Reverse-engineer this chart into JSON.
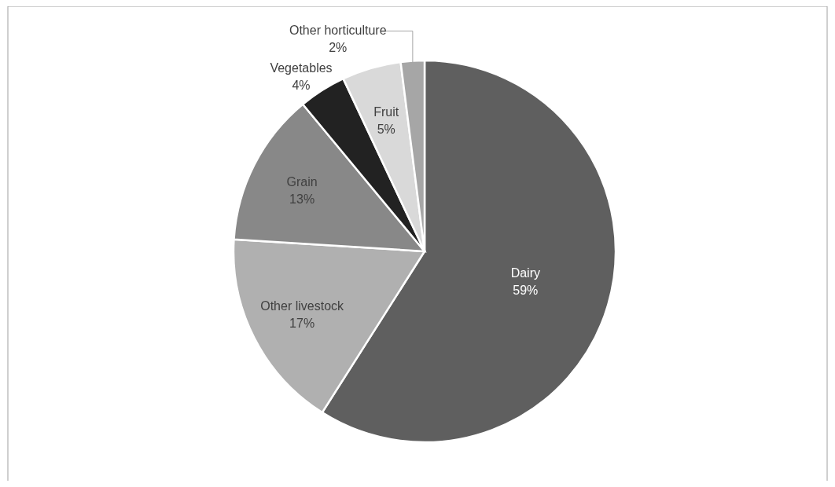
{
  "chart_data": {
    "type": "pie",
    "categories": [
      "Dairy",
      "Other livestock",
      "Grain",
      "Vegetables",
      "Fruit",
      "Other horticulture"
    ],
    "values": [
      59,
      17,
      13,
      4,
      5,
      2
    ],
    "value_labels": [
      "59%",
      "17%",
      "13%",
      "4%",
      "5%",
      "2%"
    ],
    "colors": [
      "#5f5f5f",
      "#b0b0b0",
      "#888888",
      "#222222",
      "#d9d9d9",
      "#a6a6a6"
    ]
  }
}
